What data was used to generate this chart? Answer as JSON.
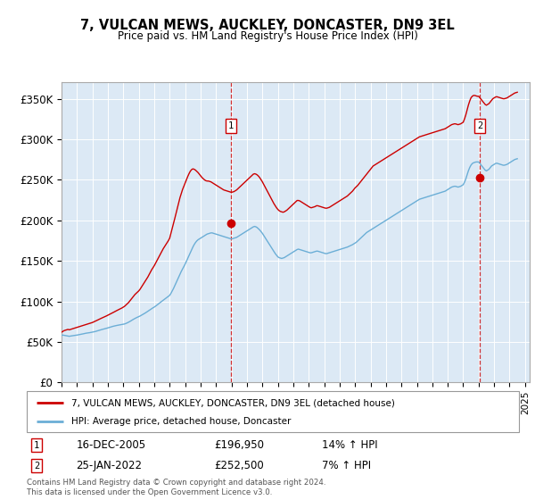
{
  "title": "7, VULCAN MEWS, AUCKLEY, DONCASTER, DN9 3EL",
  "subtitle": "Price paid vs. HM Land Registry's House Price Index (HPI)",
  "ylim": [
    0,
    370000
  ],
  "yticks": [
    0,
    50000,
    100000,
    150000,
    200000,
    250000,
    300000,
    350000
  ],
  "ytick_labels": [
    "£0",
    "£50K",
    "£100K",
    "£150K",
    "£200K",
    "£250K",
    "£300K",
    "£350K"
  ],
  "background_color": "#dce9f5",
  "hpi_color": "#6baed6",
  "price_color": "#cc0000",
  "marker_color": "#cc0000",
  "sale1_year": 2005.96,
  "sale1_price": 196950,
  "sale1_label": "1",
  "sale1_date": "16-DEC-2005",
  "sale1_price_str": "£196,950",
  "sale1_hpi": "14% ↑ HPI",
  "sale2_year": 2022.07,
  "sale2_price": 252500,
  "sale2_label": "2",
  "sale2_date": "25-JAN-2022",
  "sale2_price_str": "£252,500",
  "sale2_hpi": "7% ↑ HPI",
  "legend_line1": "7, VULCAN MEWS, AUCKLEY, DONCASTER, DN9 3EL (detached house)",
  "legend_line2": "HPI: Average price, detached house, Doncaster",
  "footnote": "Contains HM Land Registry data © Crown copyright and database right 2024.\nThis data is licensed under the Open Government Licence v3.0.",
  "hpi_data_years": [
    1995.0,
    1995.083,
    1995.167,
    1995.25,
    1995.333,
    1995.417,
    1995.5,
    1995.583,
    1995.667,
    1995.75,
    1995.833,
    1995.917,
    1996.0,
    1996.083,
    1996.167,
    1996.25,
    1996.333,
    1996.417,
    1996.5,
    1996.583,
    1996.667,
    1996.75,
    1996.833,
    1996.917,
    1997.0,
    1997.083,
    1997.167,
    1997.25,
    1997.333,
    1997.417,
    1997.5,
    1997.583,
    1997.667,
    1997.75,
    1997.833,
    1997.917,
    1998.0,
    1998.083,
    1998.167,
    1998.25,
    1998.333,
    1998.417,
    1998.5,
    1998.583,
    1998.667,
    1998.75,
    1998.833,
    1998.917,
    1999.0,
    1999.083,
    1999.167,
    1999.25,
    1999.333,
    1999.417,
    1999.5,
    1999.583,
    1999.667,
    1999.75,
    1999.833,
    1999.917,
    2000.0,
    2000.083,
    2000.167,
    2000.25,
    2000.333,
    2000.417,
    2000.5,
    2000.583,
    2000.667,
    2000.75,
    2000.833,
    2000.917,
    2001.0,
    2001.083,
    2001.167,
    2001.25,
    2001.333,
    2001.417,
    2001.5,
    2001.583,
    2001.667,
    2001.75,
    2001.833,
    2001.917,
    2002.0,
    2002.083,
    2002.167,
    2002.25,
    2002.333,
    2002.417,
    2002.5,
    2002.583,
    2002.667,
    2002.75,
    2002.833,
    2002.917,
    2003.0,
    2003.083,
    2003.167,
    2003.25,
    2003.333,
    2003.417,
    2003.5,
    2003.583,
    2003.667,
    2003.75,
    2003.833,
    2003.917,
    2004.0,
    2004.083,
    2004.167,
    2004.25,
    2004.333,
    2004.417,
    2004.5,
    2004.583,
    2004.667,
    2004.75,
    2004.833,
    2004.917,
    2005.0,
    2005.083,
    2005.167,
    2005.25,
    2005.333,
    2005.417,
    2005.5,
    2005.583,
    2005.667,
    2005.75,
    2005.833,
    2005.917,
    2006.0,
    2006.083,
    2006.167,
    2006.25,
    2006.333,
    2006.417,
    2006.5,
    2006.583,
    2006.667,
    2006.75,
    2006.833,
    2006.917,
    2007.0,
    2007.083,
    2007.167,
    2007.25,
    2007.333,
    2007.417,
    2007.5,
    2007.583,
    2007.667,
    2007.75,
    2007.833,
    2007.917,
    2008.0,
    2008.083,
    2008.167,
    2008.25,
    2008.333,
    2008.417,
    2008.5,
    2008.583,
    2008.667,
    2008.75,
    2008.833,
    2008.917,
    2009.0,
    2009.083,
    2009.167,
    2009.25,
    2009.333,
    2009.417,
    2009.5,
    2009.583,
    2009.667,
    2009.75,
    2009.833,
    2009.917,
    2010.0,
    2010.083,
    2010.167,
    2010.25,
    2010.333,
    2010.417,
    2010.5,
    2010.583,
    2010.667,
    2010.75,
    2010.833,
    2010.917,
    2011.0,
    2011.083,
    2011.167,
    2011.25,
    2011.333,
    2011.417,
    2011.5,
    2011.583,
    2011.667,
    2011.75,
    2011.833,
    2011.917,
    2012.0,
    2012.083,
    2012.167,
    2012.25,
    2012.333,
    2012.417,
    2012.5,
    2012.583,
    2012.667,
    2012.75,
    2012.833,
    2012.917,
    2013.0,
    2013.083,
    2013.167,
    2013.25,
    2013.333,
    2013.417,
    2013.5,
    2013.583,
    2013.667,
    2013.75,
    2013.833,
    2013.917,
    2014.0,
    2014.083,
    2014.167,
    2014.25,
    2014.333,
    2014.417,
    2014.5,
    2014.583,
    2014.667,
    2014.75,
    2014.833,
    2014.917,
    2015.0,
    2015.083,
    2015.167,
    2015.25,
    2015.333,
    2015.417,
    2015.5,
    2015.583,
    2015.667,
    2015.75,
    2015.833,
    2015.917,
    2016.0,
    2016.083,
    2016.167,
    2016.25,
    2016.333,
    2016.417,
    2016.5,
    2016.583,
    2016.667,
    2016.75,
    2016.833,
    2016.917,
    2017.0,
    2017.083,
    2017.167,
    2017.25,
    2017.333,
    2017.417,
    2017.5,
    2017.583,
    2017.667,
    2017.75,
    2017.833,
    2017.917,
    2018.0,
    2018.083,
    2018.167,
    2018.25,
    2018.333,
    2018.417,
    2018.5,
    2018.583,
    2018.667,
    2018.75,
    2018.833,
    2018.917,
    2019.0,
    2019.083,
    2019.167,
    2019.25,
    2019.333,
    2019.417,
    2019.5,
    2019.583,
    2019.667,
    2019.75,
    2019.833,
    2019.917,
    2020.0,
    2020.083,
    2020.167,
    2020.25,
    2020.333,
    2020.417,
    2020.5,
    2020.583,
    2020.667,
    2020.75,
    2020.833,
    2020.917,
    2021.0,
    2021.083,
    2021.167,
    2021.25,
    2021.333,
    2021.417,
    2021.5,
    2021.583,
    2021.667,
    2021.75,
    2021.833,
    2021.917,
    2022.0,
    2022.083,
    2022.167,
    2022.25,
    2022.333,
    2022.417,
    2022.5,
    2022.583,
    2022.667,
    2022.75,
    2022.833,
    2022.917,
    2023.0,
    2023.083,
    2023.167,
    2023.25,
    2023.333,
    2023.417,
    2023.5,
    2023.583,
    2023.667,
    2023.75,
    2023.833,
    2023.917,
    2024.0,
    2024.083,
    2024.167,
    2024.25,
    2024.333,
    2024.417,
    2024.5
  ],
  "hpi_data_values": [
    58000,
    58500,
    58200,
    57800,
    57500,
    57200,
    57000,
    57300,
    57600,
    57800,
    58000,
    58200,
    58500,
    58800,
    59200,
    59500,
    59800,
    60100,
    60500,
    60800,
    61000,
    61200,
    61500,
    61800,
    62000,
    62400,
    62800,
    63300,
    63800,
    64200,
    64700,
    65200,
    65600,
    66000,
    66400,
    66900,
    67400,
    67900,
    68300,
    68800,
    69300,
    69700,
    70100,
    70400,
    70700,
    71000,
    71300,
    71500,
    71800,
    72200,
    72800,
    73500,
    74300,
    75200,
    76200,
    77200,
    78100,
    79000,
    79800,
    80500,
    81200,
    82000,
    82900,
    83800,
    84700,
    85700,
    86700,
    87800,
    88900,
    90000,
    91000,
    92100,
    93000,
    94100,
    95300,
    96600,
    97800,
    99100,
    100300,
    101500,
    102700,
    103900,
    105000,
    106200,
    107500,
    110000,
    113000,
    116000,
    119500,
    123000,
    126500,
    130000,
    133500,
    137000,
    140000,
    143000,
    146000,
    149500,
    153000,
    156500,
    160000,
    163500,
    167000,
    170000,
    172500,
    174500,
    176000,
    177000,
    178000,
    179000,
    180000,
    181000,
    182000,
    183000,
    183500,
    184000,
    184500,
    184500,
    184000,
    183500,
    183000,
    182500,
    182000,
    181500,
    181000,
    180500,
    180000,
    179500,
    179000,
    178500,
    178000,
    177500,
    177000,
    177500,
    178000,
    178500,
    179000,
    180000,
    181000,
    182000,
    183000,
    184000,
    185000,
    186000,
    187000,
    188000,
    189000,
    190000,
    191000,
    192000,
    192500,
    192000,
    191000,
    189500,
    188000,
    186000,
    184000,
    181500,
    179000,
    176500,
    174000,
    171500,
    169000,
    166500,
    164000,
    161500,
    159000,
    157000,
    155000,
    154000,
    153500,
    153000,
    153500,
    154000,
    155000,
    156000,
    157000,
    158000,
    159000,
    160000,
    161000,
    162000,
    163000,
    164000,
    164500,
    164000,
    163500,
    163000,
    162500,
    162000,
    161500,
    161000,
    160500,
    160000,
    160000,
    160500,
    161000,
    161500,
    162000,
    162000,
    161500,
    161000,
    160500,
    160000,
    159500,
    159000,
    159000,
    159500,
    160000,
    160500,
    161000,
    161500,
    162000,
    162500,
    163000,
    163500,
    164000,
    164500,
    165000,
    165500,
    166000,
    166500,
    167000,
    167800,
    168500,
    169200,
    170000,
    171000,
    172000,
    173000,
    174500,
    176000,
    177500,
    179000,
    180500,
    182000,
    183500,
    185000,
    186000,
    187000,
    188000,
    189000,
    190000,
    191000,
    192000,
    193000,
    194000,
    195000,
    196000,
    197000,
    198000,
    199000,
    200000,
    201000,
    202000,
    203000,
    204000,
    205000,
    206000,
    207000,
    208000,
    209000,
    210000,
    211000,
    212000,
    213000,
    214000,
    215000,
    216000,
    217000,
    218000,
    219000,
    220000,
    221000,
    222000,
    223000,
    224000,
    225000,
    226000,
    226500,
    227000,
    227500,
    228000,
    228500,
    229000,
    229500,
    230000,
    230500,
    231000,
    231500,
    232000,
    232500,
    233000,
    233500,
    234000,
    234500,
    235000,
    235500,
    236000,
    237000,
    238000,
    239000,
    240000,
    241000,
    241500,
    242000,
    242000,
    241500,
    241000,
    241500,
    242000,
    243000,
    244000,
    247000,
    251000,
    256000,
    261000,
    265000,
    268000,
    270000,
    271000,
    271500,
    272000,
    272000,
    272000,
    270000,
    268000,
    266000,
    264000,
    262000,
    261000,
    262000,
    263000,
    265000,
    267000,
    268000,
    269000,
    270000,
    270500,
    270000,
    269500,
    269000,
    268500,
    268000,
    268000,
    268500,
    269000,
    270000,
    271000,
    272000,
    273000,
    274000,
    275000,
    275500,
    276000
  ],
  "price_data_years": [
    1995.0,
    1995.083,
    1995.167,
    1995.25,
    1995.333,
    1995.417,
    1995.5,
    1995.583,
    1995.667,
    1995.75,
    1995.833,
    1995.917,
    1996.0,
    1996.083,
    1996.167,
    1996.25,
    1996.333,
    1996.417,
    1996.5,
    1996.583,
    1996.667,
    1996.75,
    1996.833,
    1996.917,
    1997.0,
    1997.083,
    1997.167,
    1997.25,
    1997.333,
    1997.417,
    1997.5,
    1997.583,
    1997.667,
    1997.75,
    1997.833,
    1997.917,
    1998.0,
    1998.083,
    1998.167,
    1998.25,
    1998.333,
    1998.417,
    1998.5,
    1998.583,
    1998.667,
    1998.75,
    1998.833,
    1998.917,
    1999.0,
    1999.083,
    1999.167,
    1999.25,
    1999.333,
    1999.417,
    1999.5,
    1999.583,
    1999.667,
    1999.75,
    1999.833,
    1999.917,
    2000.0,
    2000.083,
    2000.167,
    2000.25,
    2000.333,
    2000.417,
    2000.5,
    2000.583,
    2000.667,
    2000.75,
    2000.833,
    2000.917,
    2001.0,
    2001.083,
    2001.167,
    2001.25,
    2001.333,
    2001.417,
    2001.5,
    2001.583,
    2001.667,
    2001.75,
    2001.833,
    2001.917,
    2002.0,
    2002.083,
    2002.167,
    2002.25,
    2002.333,
    2002.417,
    2002.5,
    2002.583,
    2002.667,
    2002.75,
    2002.833,
    2002.917,
    2003.0,
    2003.083,
    2003.167,
    2003.25,
    2003.333,
    2003.417,
    2003.5,
    2003.583,
    2003.667,
    2003.75,
    2003.833,
    2003.917,
    2004.0,
    2004.083,
    2004.167,
    2004.25,
    2004.333,
    2004.417,
    2004.5,
    2004.583,
    2004.667,
    2004.75,
    2004.833,
    2004.917,
    2005.0,
    2005.083,
    2005.167,
    2005.25,
    2005.333,
    2005.417,
    2005.5,
    2005.583,
    2005.667,
    2005.75,
    2005.833,
    2005.917,
    2006.0,
    2006.083,
    2006.167,
    2006.25,
    2006.333,
    2006.417,
    2006.5,
    2006.583,
    2006.667,
    2006.75,
    2006.833,
    2006.917,
    2007.0,
    2007.083,
    2007.167,
    2007.25,
    2007.333,
    2007.417,
    2007.5,
    2007.583,
    2007.667,
    2007.75,
    2007.833,
    2007.917,
    2008.0,
    2008.083,
    2008.167,
    2008.25,
    2008.333,
    2008.417,
    2008.5,
    2008.583,
    2008.667,
    2008.75,
    2008.833,
    2008.917,
    2009.0,
    2009.083,
    2009.167,
    2009.25,
    2009.333,
    2009.417,
    2009.5,
    2009.583,
    2009.667,
    2009.75,
    2009.833,
    2009.917,
    2010.0,
    2010.083,
    2010.167,
    2010.25,
    2010.333,
    2010.417,
    2010.5,
    2010.583,
    2010.667,
    2010.75,
    2010.833,
    2010.917,
    2011.0,
    2011.083,
    2011.167,
    2011.25,
    2011.333,
    2011.417,
    2011.5,
    2011.583,
    2011.667,
    2011.75,
    2011.833,
    2011.917,
    2012.0,
    2012.083,
    2012.167,
    2012.25,
    2012.333,
    2012.417,
    2012.5,
    2012.583,
    2012.667,
    2012.75,
    2012.833,
    2012.917,
    2013.0,
    2013.083,
    2013.167,
    2013.25,
    2013.333,
    2013.417,
    2013.5,
    2013.583,
    2013.667,
    2013.75,
    2013.833,
    2013.917,
    2014.0,
    2014.083,
    2014.167,
    2014.25,
    2014.333,
    2014.417,
    2014.5,
    2014.583,
    2014.667,
    2014.75,
    2014.833,
    2014.917,
    2015.0,
    2015.083,
    2015.167,
    2015.25,
    2015.333,
    2015.417,
    2015.5,
    2015.583,
    2015.667,
    2015.75,
    2015.833,
    2015.917,
    2016.0,
    2016.083,
    2016.167,
    2016.25,
    2016.333,
    2016.417,
    2016.5,
    2016.583,
    2016.667,
    2016.75,
    2016.833,
    2016.917,
    2017.0,
    2017.083,
    2017.167,
    2017.25,
    2017.333,
    2017.417,
    2017.5,
    2017.583,
    2017.667,
    2017.75,
    2017.833,
    2017.917,
    2018.0,
    2018.083,
    2018.167,
    2018.25,
    2018.333,
    2018.417,
    2018.5,
    2018.583,
    2018.667,
    2018.75,
    2018.833,
    2018.917,
    2019.0,
    2019.083,
    2019.167,
    2019.25,
    2019.333,
    2019.417,
    2019.5,
    2019.583,
    2019.667,
    2019.75,
    2019.833,
    2019.917,
    2020.0,
    2020.083,
    2020.167,
    2020.25,
    2020.333,
    2020.417,
    2020.5,
    2020.583,
    2020.667,
    2020.75,
    2020.833,
    2020.917,
    2021.0,
    2021.083,
    2021.167,
    2021.25,
    2021.333,
    2021.417,
    2021.5,
    2021.583,
    2021.667,
    2021.75,
    2021.833,
    2021.917,
    2022.0,
    2022.083,
    2022.167,
    2022.25,
    2022.333,
    2022.417,
    2022.5,
    2022.583,
    2022.667,
    2022.75,
    2022.833,
    2022.917,
    2023.0,
    2023.083,
    2023.167,
    2023.25,
    2023.333,
    2023.417,
    2023.5,
    2023.583,
    2023.667,
    2023.75,
    2023.833,
    2023.917,
    2024.0,
    2024.083,
    2024.167,
    2024.25,
    2024.333,
    2024.417,
    2024.5
  ],
  "price_data_values": [
    62000,
    63000,
    64000,
    64500,
    65000,
    65500,
    65000,
    65500,
    66000,
    66500,
    67000,
    67500,
    68000,
    68500,
    69000,
    69500,
    70000,
    70500,
    71000,
    71500,
    72000,
    72500,
    73000,
    73500,
    74000,
    74800,
    75500,
    76200,
    77000,
    77800,
    78500,
    79300,
    80000,
    80800,
    81500,
    82200,
    83000,
    83800,
    84700,
    85500,
    86300,
    87100,
    88000,
    88800,
    89600,
    90400,
    91200,
    92000,
    93000,
    94000,
    95500,
    97000,
    98500,
    100500,
    102500,
    104500,
    106500,
    108500,
    110000,
    111500,
    113000,
    115000,
    117500,
    120000,
    122500,
    125000,
    127500,
    130000,
    133000,
    136000,
    139000,
    141500,
    144000,
    147000,
    150000,
    153000,
    156000,
    159000,
    162000,
    165000,
    167500,
    170000,
    172500,
    175000,
    178000,
    184000,
    190000,
    196000,
    202500,
    209000,
    215500,
    222000,
    228000,
    233000,
    238000,
    242000,
    246000,
    250000,
    254000,
    257500,
    260500,
    262500,
    263500,
    263000,
    262000,
    260500,
    259000,
    257000,
    255000,
    253000,
    251500,
    250000,
    249000,
    248500,
    248500,
    248000,
    247500,
    246500,
    245500,
    244500,
    243500,
    242500,
    241500,
    240500,
    239500,
    238500,
    237500,
    237000,
    236500,
    236000,
    235500,
    235000,
    234500,
    235000,
    235500,
    236500,
    237500,
    239000,
    240500,
    242000,
    243500,
    245000,
    246500,
    248000,
    249500,
    251000,
    252500,
    254000,
    255500,
    257000,
    257500,
    257000,
    256000,
    254500,
    252500,
    250000,
    247500,
    244500,
    241500,
    238500,
    235500,
    232500,
    229500,
    226500,
    223500,
    220500,
    218000,
    215500,
    213500,
    212000,
    211000,
    210500,
    210000,
    210500,
    211500,
    212500,
    214000,
    215500,
    217000,
    218500,
    220000,
    221500,
    223000,
    224500,
    224500,
    224000,
    223000,
    222000,
    221000,
    220000,
    219000,
    218000,
    217000,
    216000,
    215500,
    216000,
    216500,
    217000,
    218000,
    218000,
    217500,
    217000,
    216500,
    216000,
    215500,
    215000,
    215000,
    215500,
    216000,
    217000,
    218000,
    219000,
    220000,
    221000,
    222000,
    223000,
    224000,
    225000,
    226000,
    227000,
    228000,
    229000,
    230000,
    231500,
    233000,
    234500,
    236000,
    238000,
    240000,
    241500,
    243000,
    245000,
    247000,
    249000,
    251000,
    253000,
    255000,
    257000,
    259000,
    261000,
    263000,
    265000,
    267000,
    268000,
    269000,
    270000,
    271000,
    272000,
    273000,
    274000,
    275000,
    276000,
    277000,
    278000,
    279000,
    280000,
    281000,
    282000,
    283000,
    284000,
    285000,
    286000,
    287000,
    288000,
    289000,
    290000,
    291000,
    292000,
    293000,
    294000,
    295000,
    296000,
    297000,
    298000,
    299000,
    300000,
    301000,
    302000,
    303000,
    303500,
    304000,
    304500,
    305000,
    305500,
    306000,
    306500,
    307000,
    307500,
    308000,
    308500,
    309000,
    309500,
    310000,
    310500,
    311000,
    311500,
    312000,
    312500,
    313000,
    314000,
    315000,
    316000,
    317000,
    318000,
    318500,
    319000,
    319000,
    318500,
    318000,
    318500,
    319000,
    320000,
    321000,
    325000,
    330000,
    336000,
    342000,
    347000,
    351000,
    353000,
    354000,
    354000,
    353500,
    353000,
    353000,
    351000,
    349000,
    347000,
    345000,
    343000,
    342000,
    343000,
    344000,
    346000,
    348000,
    350000,
    351000,
    352000,
    352500,
    352000,
    351500,
    351000,
    350500,
    350000,
    350000,
    350500,
    351000,
    352000,
    353000,
    354000,
    355000,
    356000,
    357000,
    357500,
    358000
  ]
}
